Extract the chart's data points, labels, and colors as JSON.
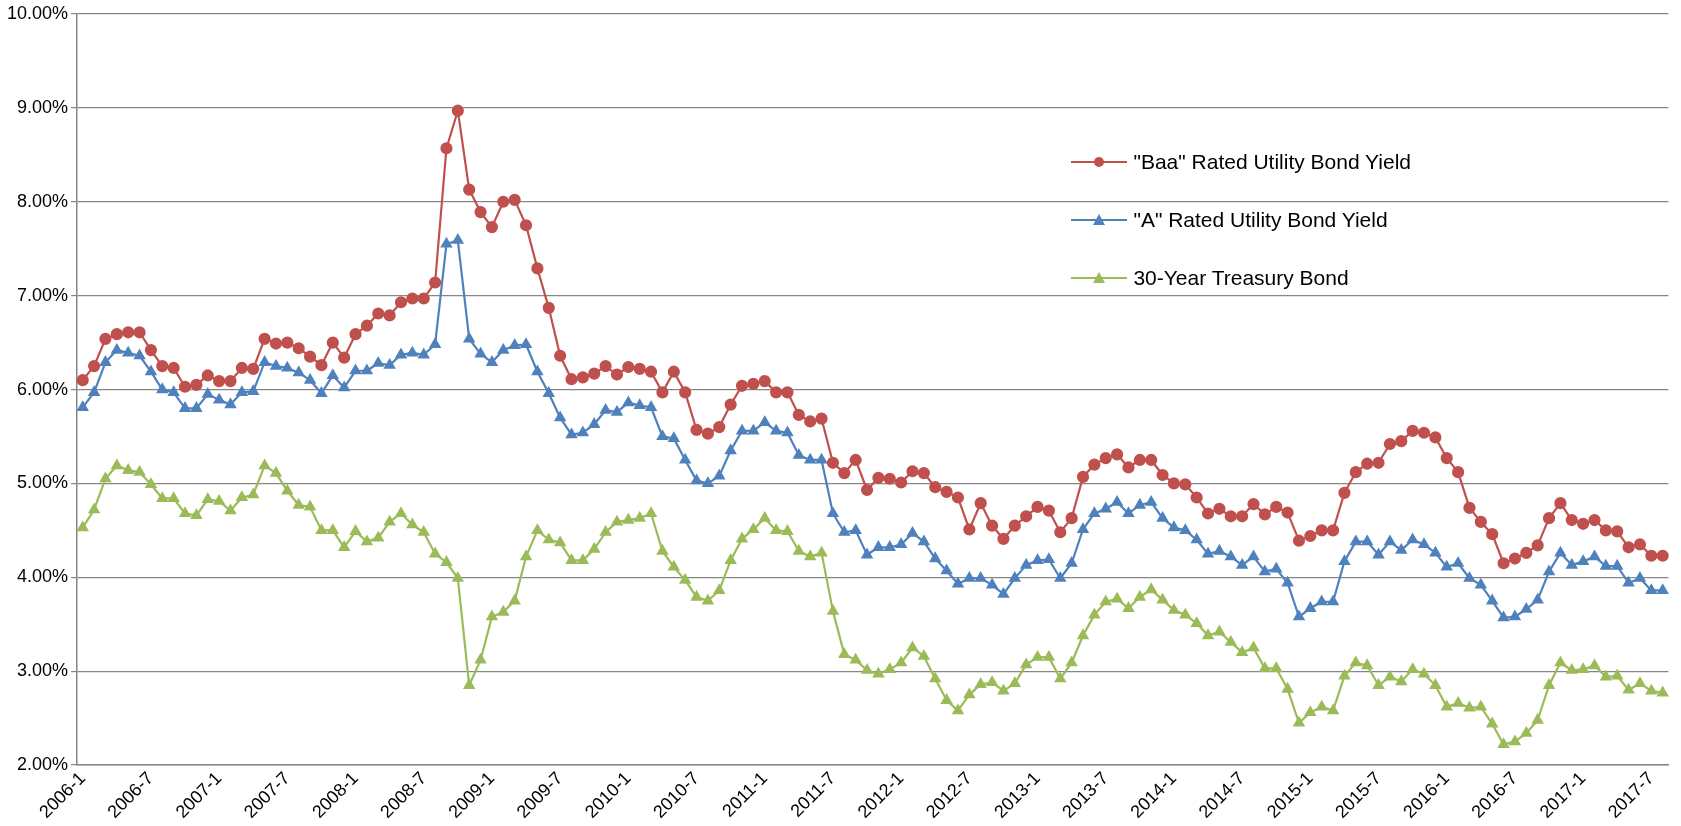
{
  "chart_data": {
    "type": "line",
    "categories": [
      "2006-1",
      null,
      null,
      null,
      null,
      null,
      "2006-7",
      null,
      null,
      null,
      null,
      null,
      "2007-1",
      null,
      null,
      null,
      null,
      null,
      "2007-7",
      null,
      null,
      null,
      null,
      null,
      "2008-1",
      null,
      null,
      null,
      null,
      null,
      "2008-7",
      null,
      null,
      null,
      null,
      null,
      "2009-1",
      null,
      null,
      null,
      null,
      null,
      "2009-7",
      null,
      null,
      null,
      null,
      null,
      "2010-1",
      null,
      null,
      null,
      null,
      null,
      "2010-7",
      null,
      null,
      null,
      null,
      null,
      "2011-1",
      null,
      null,
      null,
      null,
      null,
      "2011-7",
      null,
      null,
      null,
      null,
      null,
      "2012-1",
      null,
      null,
      null,
      null,
      null,
      "2012-7",
      null,
      null,
      null,
      null,
      null,
      "2013-1",
      null,
      null,
      null,
      null,
      null,
      "2013-7",
      null,
      null,
      null,
      null,
      null,
      "2014-1",
      null,
      null,
      null,
      null,
      null,
      "2014-7",
      null,
      null,
      null,
      null,
      null,
      "2015-1",
      null,
      null,
      null,
      null,
      null,
      "2015-7",
      null,
      null,
      null,
      null,
      null,
      "2016-1",
      null,
      null,
      null,
      null,
      null,
      "2016-7",
      null,
      null,
      null,
      null,
      null,
      "2017-1",
      null,
      null,
      null,
      null,
      null,
      "2017-7",
      null
    ],
    "series": [
      {
        "name": "\"Baa\" Rated Utility Bond Yield",
        "color": "#c0504d",
        "marker": "circle",
        "values": [
          6.1,
          6.25,
          6.54,
          6.59,
          6.61,
          6.61,
          6.42,
          6.25,
          6.23,
          6.03,
          6.05,
          6.15,
          6.09,
          6.09,
          6.23,
          6.22,
          6.54,
          6.49,
          6.5,
          6.44,
          6.35,
          6.26,
          6.5,
          6.34,
          6.59,
          6.68,
          6.81,
          6.79,
          6.93,
          6.97,
          6.97,
          7.14,
          8.57,
          8.97,
          8.13,
          7.89,
          7.73,
          8.0,
          8.02,
          7.75,
          7.29,
          6.87,
          6.36,
          6.11,
          6.13,
          6.17,
          6.25,
          6.16,
          6.24,
          6.22,
          6.19,
          5.97,
          6.19,
          5.97,
          5.57,
          5.53,
          5.6,
          5.84,
          6.04,
          6.06,
          6.09,
          5.97,
          5.97,
          5.73,
          5.66,
          5.69,
          5.22,
          5.11,
          5.25,
          4.93,
          5.06,
          5.05,
          5.01,
          5.13,
          5.11,
          4.96,
          4.91,
          4.85,
          4.51,
          4.79,
          4.55,
          4.41,
          4.55,
          4.65,
          4.75,
          4.71,
          4.48,
          4.63,
          5.07,
          5.2,
          5.27,
          5.31,
          5.17,
          5.25,
          5.25,
          5.09,
          5.0,
          4.99,
          4.85,
          4.68,
          4.73,
          4.65,
          4.65,
          4.78,
          4.67,
          4.75,
          4.69,
          4.39,
          4.44,
          4.5,
          4.5,
          4.9,
          5.12,
          5.21,
          5.22,
          5.42,
          5.45,
          5.56,
          5.54,
          5.49,
          5.27,
          5.12,
          4.74,
          4.59,
          4.46,
          4.15,
          4.2,
          4.26,
          4.34,
          4.63,
          4.79,
          4.61,
          4.57,
          4.61,
          4.5,
          4.49,
          4.32,
          4.35,
          4.23,
          4.23
        ]
      },
      {
        "name": "\"A\" Rated Utility Bond Yield",
        "color": "#4f81bd",
        "marker": "triangle",
        "values": [
          5.81,
          5.97,
          6.29,
          6.42,
          6.39,
          6.36,
          6.19,
          6.0,
          5.97,
          5.8,
          5.8,
          5.95,
          5.89,
          5.84,
          5.97,
          5.98,
          6.29,
          6.25,
          6.23,
          6.18,
          6.1,
          5.96,
          6.15,
          6.02,
          6.2,
          6.2,
          6.28,
          6.26,
          6.37,
          6.39,
          6.37,
          6.48,
          7.55,
          7.59,
          6.54,
          6.38,
          6.29,
          6.42,
          6.47,
          6.48,
          6.19,
          5.96,
          5.7,
          5.52,
          5.54,
          5.63,
          5.78,
          5.76,
          5.86,
          5.83,
          5.81,
          5.5,
          5.48,
          5.25,
          5.03,
          5.0,
          5.08,
          5.35,
          5.56,
          5.56,
          5.65,
          5.56,
          5.54,
          5.3,
          5.25,
          5.25,
          4.68,
          4.48,
          4.5,
          4.24,
          4.32,
          4.32,
          4.35,
          4.47,
          4.38,
          4.2,
          4.07,
          3.93,
          3.99,
          3.99,
          3.92,
          3.82,
          3.99,
          4.13,
          4.18,
          4.19,
          3.99,
          4.15,
          4.51,
          4.68,
          4.73,
          4.8,
          4.68,
          4.77,
          4.8,
          4.63,
          4.53,
          4.5,
          4.4,
          4.25,
          4.28,
          4.22,
          4.13,
          4.22,
          4.06,
          4.09,
          3.94,
          3.58,
          3.67,
          3.74,
          3.74,
          4.17,
          4.38,
          4.38,
          4.24,
          4.38,
          4.29,
          4.4,
          4.35,
          4.26,
          4.11,
          4.15,
          3.99,
          3.92,
          3.75,
          3.57,
          3.58,
          3.66,
          3.76,
          4.06,
          4.26,
          4.13,
          4.17,
          4.22,
          4.12,
          4.12,
          3.94,
          3.99,
          3.86,
          3.86
        ]
      },
      {
        "name": "30-Year Treasury Bond",
        "color": "#9bbb59",
        "marker": "triangle",
        "values": [
          4.53,
          4.72,
          5.05,
          5.19,
          5.14,
          5.12,
          4.99,
          4.84,
          4.84,
          4.68,
          4.66,
          4.83,
          4.81,
          4.71,
          4.85,
          4.88,
          5.19,
          5.11,
          4.92,
          4.77,
          4.75,
          4.5,
          4.5,
          4.32,
          4.49,
          4.38,
          4.42,
          4.59,
          4.68,
          4.56,
          4.48,
          4.25,
          4.16,
          3.99,
          2.85,
          3.12,
          3.58,
          3.63,
          3.75,
          4.22,
          4.5,
          4.4,
          4.37,
          4.18,
          4.18,
          4.3,
          4.48,
          4.59,
          4.61,
          4.63,
          4.68,
          4.28,
          4.11,
          3.97,
          3.79,
          3.75,
          3.86,
          4.18,
          4.41,
          4.51,
          4.63,
          4.5,
          4.49,
          4.28,
          4.22,
          4.26,
          3.64,
          3.18,
          3.12,
          3.01,
          2.97,
          3.02,
          3.09,
          3.25,
          3.16,
          2.92,
          2.69,
          2.58,
          2.75,
          2.86,
          2.88,
          2.79,
          2.87,
          3.07,
          3.15,
          3.15,
          2.92,
          3.09,
          3.38,
          3.6,
          3.74,
          3.77,
          3.67,
          3.79,
          3.87,
          3.76,
          3.65,
          3.6,
          3.51,
          3.38,
          3.42,
          3.31,
          3.2,
          3.25,
          3.03,
          3.03,
          2.81,
          2.45,
          2.56,
          2.62,
          2.58,
          2.95,
          3.09,
          3.06,
          2.85,
          2.94,
          2.89,
          3.02,
          2.97,
          2.85,
          2.62,
          2.66,
          2.61,
          2.62,
          2.44,
          2.22,
          2.25,
          2.34,
          2.48,
          2.85,
          3.09,
          3.01,
          3.02,
          3.06,
          2.94,
          2.95,
          2.8,
          2.87,
          2.79,
          2.77
        ]
      }
    ],
    "ylim": [
      2,
      10
    ],
    "yticks": [
      {
        "value": 2,
        "label": "2.00%"
      },
      {
        "value": 3,
        "label": "3.00%"
      },
      {
        "value": 4,
        "label": "4.00%"
      },
      {
        "value": 5,
        "label": "5.00%"
      },
      {
        "value": 6,
        "label": "6.00%"
      },
      {
        "value": 7,
        "label": "7.00%"
      },
      {
        "value": 8,
        "label": "8.00%"
      },
      {
        "value": 9,
        "label": "9.00%"
      },
      {
        "value": 10,
        "label": "10.00%"
      }
    ],
    "grid": "y",
    "legend": "right",
    "line_style": "solid"
  }
}
